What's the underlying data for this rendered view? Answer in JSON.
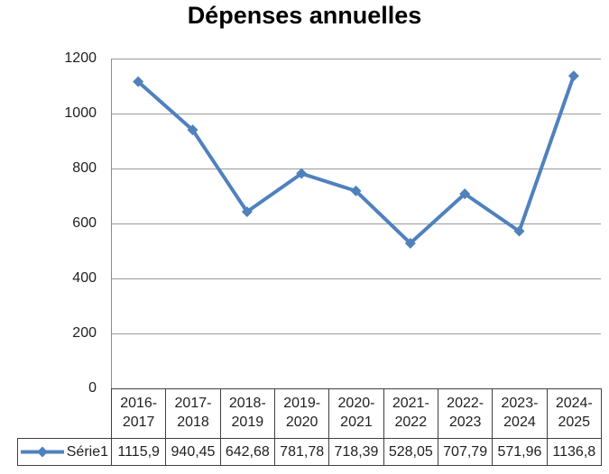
{
  "chart_data": {
    "type": "line",
    "title": "Dépenses annuelles",
    "series_name": "Série1",
    "categories": [
      "2016-2017",
      "2017-2018",
      "2018-2019",
      "2019-2020",
      "2020-2021",
      "2021-2022",
      "2022-2023",
      "2023-2024",
      "2024-2025"
    ],
    "values": [
      1115.9,
      940.45,
      642.68,
      781.78,
      718.39,
      528.05,
      707.79,
      571.96,
      1136.8
    ],
    "values_display": [
      "1115,9",
      "940,45",
      "642,68",
      "781,78",
      "718,39",
      "528,05",
      "707,79",
      "571,96",
      "1136,8"
    ],
    "xlabel": "",
    "ylabel": "",
    "ylim": [
      0,
      1200
    ],
    "yticks": [
      1200,
      1000,
      800,
      600,
      400,
      200,
      0
    ],
    "grid": true,
    "legend_position": "table-left",
    "marker": "diamond",
    "colors": {
      "series": "#4F81BD",
      "gridline": "#9A9A9A",
      "axis": "#8C8C8C",
      "table_border": "#404040",
      "text": "#1F1F1F",
      "title": "#000000",
      "background": "#FFFFFF"
    }
  }
}
